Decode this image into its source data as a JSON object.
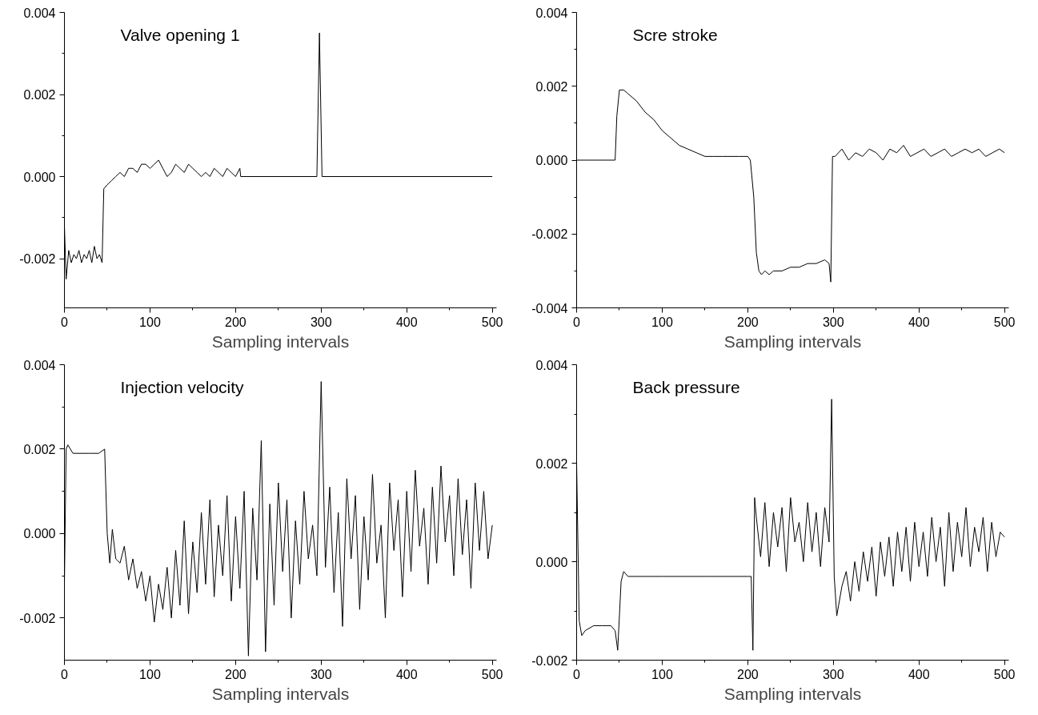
{
  "chart_data": [
    {
      "type": "line",
      "annotations": [
        "Valve opening 1"
      ],
      "xlabel": "Sampling intervals",
      "xlim": [
        0,
        505
      ],
      "ylim": [
        -0.0032,
        0.004
      ],
      "xticks": [
        0,
        100,
        200,
        300,
        400,
        500
      ],
      "yticks": [
        {
          "value": -0.002,
          "label": "-0.002"
        },
        {
          "value": 0,
          "label": "0.000"
        },
        {
          "value": 0.002,
          "label": "0.002"
        },
        {
          "value": 0.004,
          "label": "0.004"
        }
      ],
      "grid": false,
      "series": [
        {
          "color": "#000000",
          "x": [
            0,
            2,
            5,
            8,
            11,
            14,
            17,
            20,
            23,
            26,
            29,
            32,
            35,
            38,
            41,
            44,
            46,
            50,
            55,
            60,
            65,
            70,
            75,
            80,
            85,
            90,
            95,
            100,
            105,
            110,
            115,
            120,
            125,
            130,
            135,
            140,
            145,
            150,
            155,
            160,
            165,
            170,
            175,
            180,
            185,
            190,
            195,
            200,
            205,
            206,
            295,
            298,
            301,
            500
          ],
          "values": [
            -0.0012,
            -0.0025,
            -0.0018,
            -0.0021,
            -0.0019,
            -0.002,
            -0.0018,
            -0.0021,
            -0.0019,
            -0.002,
            -0.0018,
            -0.0021,
            -0.0017,
            -0.002,
            -0.0019,
            -0.0021,
            -0.0003,
            -0.0002,
            -0.0001,
            0.0,
            0.0001,
            0.0,
            0.0002,
            0.0002,
            0.0001,
            0.0003,
            0.0003,
            0.0002,
            0.0003,
            0.0004,
            0.0002,
            0.0,
            0.0001,
            0.0003,
            0.0002,
            0.0001,
            0.0003,
            0.0002,
            0.0001,
            0.0,
            0.0001,
            0.0,
            0.0002,
            0.0001,
            0.0,
            0.0002,
            0.0001,
            0.0,
            0.0002,
            0.0,
            0.0,
            0.0035,
            0.0,
            0.0
          ]
        }
      ]
    },
    {
      "type": "line",
      "annotations": [
        "Scre stroke"
      ],
      "xlabel": "Sampling intervals",
      "xlim": [
        0,
        505
      ],
      "ylim": [
        -0.004,
        0.004
      ],
      "xticks": [
        0,
        100,
        200,
        300,
        400,
        500
      ],
      "yticks": [
        {
          "value": -0.004,
          "label": "-0.004"
        },
        {
          "value": -0.002,
          "label": "-0.002"
        },
        {
          "value": 0,
          "label": "0.000"
        },
        {
          "value": 0.002,
          "label": "0.002"
        },
        {
          "value": 0.004,
          "label": "0.004"
        }
      ],
      "grid": false,
      "series": [
        {
          "color": "#000000",
          "x": [
            0,
            45,
            47,
            50,
            55,
            60,
            70,
            80,
            90,
            100,
            110,
            120,
            130,
            140,
            150,
            160,
            170,
            180,
            190,
            200,
            203,
            207,
            210,
            213,
            216,
            220,
            225,
            230,
            240,
            250,
            260,
            270,
            280,
            290,
            295,
            297,
            299,
            302,
            310,
            318,
            326,
            334,
            342,
            350,
            358,
            366,
            374,
            382,
            390,
            398,
            406,
            414,
            422,
            430,
            438,
            446,
            454,
            462,
            470,
            478,
            486,
            494,
            500
          ],
          "values": [
            0,
            0,
            0.0012,
            0.0019,
            0.0019,
            0.0018,
            0.0016,
            0.0013,
            0.0011,
            0.0008,
            0.0006,
            0.0004,
            0.0003,
            0.0002,
            0.0001,
            0.0001,
            0.0001,
            0.0001,
            0.0001,
            0.0001,
            0.0,
            -0.001,
            -0.0025,
            -0.003,
            -0.0031,
            -0.003,
            -0.0031,
            -0.003,
            -0.003,
            -0.0029,
            -0.0029,
            -0.0028,
            -0.0028,
            -0.0027,
            -0.0028,
            -0.0033,
            0.0001,
            0.0001,
            0.0003,
            0.0,
            0.0002,
            0.0001,
            0.0003,
            0.0002,
            0.0,
            0.0003,
            0.0002,
            0.0004,
            0.0001,
            0.0002,
            0.0003,
            0.0001,
            0.0002,
            0.0003,
            0.0001,
            0.0002,
            0.0003,
            0.0002,
            0.0003,
            0.0001,
            0.0002,
            0.0003,
            0.0002
          ]
        }
      ]
    },
    {
      "type": "line",
      "annotations": [
        "Injection velocity"
      ],
      "xlabel": "Sampling intervals",
      "xlim": [
        0,
        505
      ],
      "ylim": [
        -0.003,
        0.004
      ],
      "xticks": [
        0,
        100,
        200,
        300,
        400,
        500
      ],
      "yticks": [
        {
          "value": -0.002,
          "label": "-0.002"
        },
        {
          "value": 0,
          "label": "0.000"
        },
        {
          "value": 0.002,
          "label": "0.002"
        },
        {
          "value": 0.004,
          "label": "0.004"
        }
      ],
      "grid": false,
      "series": [
        {
          "color": "#000000",
          "x": [
            0,
            2,
            4,
            10,
            20,
            30,
            40,
            47,
            50,
            53,
            56,
            60,
            65,
            70,
            75,
            80,
            85,
            90,
            95,
            100,
            105,
            110,
            115,
            120,
            125,
            130,
            135,
            140,
            145,
            150,
            155,
            160,
            165,
            170,
            175,
            180,
            185,
            190,
            195,
            200,
            205,
            210,
            215,
            220,
            225,
            230,
            235,
            240,
            245,
            250,
            255,
            260,
            265,
            270,
            275,
            280,
            285,
            290,
            295,
            300,
            305,
            310,
            315,
            320,
            325,
            330,
            335,
            340,
            345,
            350,
            355,
            360,
            365,
            370,
            375,
            380,
            385,
            390,
            395,
            400,
            405,
            410,
            415,
            420,
            425,
            430,
            435,
            440,
            445,
            450,
            455,
            460,
            465,
            470,
            475,
            480,
            485,
            490,
            495,
            500
          ],
          "values": [
            -0.0012,
            0.002,
            0.0021,
            0.0019,
            0.0019,
            0.0019,
            0.0019,
            0.002,
            0.0,
            -0.0007,
            0.0001,
            -0.0006,
            -0.0007,
            -0.0003,
            -0.0011,
            -0.0006,
            -0.0013,
            -0.0009,
            -0.0016,
            -0.001,
            -0.0021,
            -0.0012,
            -0.0018,
            -0.0008,
            -0.002,
            -0.0004,
            -0.0017,
            0.0003,
            -0.0019,
            -0.0002,
            -0.0014,
            0.0005,
            -0.0012,
            0.0008,
            -0.0015,
            0.0002,
            -0.001,
            0.0009,
            -0.0016,
            0.0004,
            -0.0013,
            0.001,
            -0.0029,
            0.0006,
            -0.0011,
            0.0022,
            -0.0028,
            0.0007,
            -0.0017,
            0.0012,
            -0.0009,
            0.0008,
            -0.002,
            0.0003,
            -0.0012,
            0.001,
            -0.0006,
            0.0002,
            -0.001,
            0.0036,
            -0.0008,
            0.0011,
            -0.0014,
            0.0005,
            -0.0022,
            0.0013,
            -0.0006,
            0.0009,
            -0.0018,
            0.0004,
            -0.0011,
            0.0014,
            -0.0007,
            0.0002,
            -0.002,
            0.0012,
            -0.0004,
            0.0008,
            -0.0015,
            0.001,
            -0.0009,
            0.0015,
            -0.0003,
            0.0006,
            -0.0012,
            0.0011,
            -0.0007,
            0.0016,
            -0.0002,
            0.0009,
            -0.001,
            0.0013,
            -0.0005,
            0.0008,
            -0.0013,
            0.0012,
            -0.0004,
            0.001,
            -0.0006,
            0.0002
          ]
        }
      ]
    },
    {
      "type": "line",
      "annotations": [
        "Back pressure"
      ],
      "xlabel": "Sampling intervals",
      "xlim": [
        0,
        505
      ],
      "ylim": [
        -0.002,
        0.004
      ],
      "xticks": [
        0,
        100,
        200,
        300,
        400,
        500
      ],
      "yticks": [
        {
          "value": -0.002,
          "label": "-0.002"
        },
        {
          "value": 0,
          "label": "0.000"
        },
        {
          "value": 0.002,
          "label": "0.002"
        },
        {
          "value": 0.004,
          "label": "0.004"
        }
      ],
      "grid": false,
      "series": [
        {
          "color": "#000000",
          "x": [
            0,
            3,
            6,
            10,
            20,
            30,
            40,
            45,
            48,
            52,
            55,
            60,
            100,
            150,
            200,
            204,
            206,
            208,
            210,
            215,
            220,
            225,
            230,
            235,
            240,
            245,
            250,
            255,
            260,
            265,
            270,
            275,
            280,
            285,
            290,
            295,
            298,
            301,
            304,
            310,
            315,
            320,
            325,
            330,
            335,
            340,
            345,
            350,
            355,
            360,
            365,
            370,
            375,
            380,
            385,
            390,
            395,
            400,
            405,
            410,
            415,
            420,
            425,
            430,
            435,
            440,
            445,
            450,
            455,
            460,
            465,
            470,
            475,
            480,
            485,
            490,
            495,
            500
          ],
          "values": [
            0.002,
            -0.0012,
            -0.0015,
            -0.0014,
            -0.0013,
            -0.0013,
            -0.0013,
            -0.0014,
            -0.0018,
            -0.0004,
            -0.0002,
            -0.0003,
            -0.0003,
            -0.0003,
            -0.0003,
            -0.0003,
            -0.0018,
            0.0013,
            0.0009,
            0.0001,
            0.0012,
            -0.0001,
            0.001,
            0.0003,
            0.0011,
            -0.0002,
            0.0013,
            0.0004,
            0.0008,
            0.0,
            0.0012,
            0.0002,
            0.001,
            -0.0001,
            0.0011,
            0.0004,
            0.0033,
            -0.0003,
            -0.0011,
            -0.0005,
            -0.0002,
            -0.0008,
            0.0,
            -0.0006,
            0.0002,
            -0.0004,
            0.0003,
            -0.0007,
            0.0004,
            -0.0003,
            0.0005,
            -0.0005,
            0.0006,
            -0.0002,
            0.0007,
            -0.0004,
            0.0008,
            -0.0001,
            0.0006,
            -0.0003,
            0.0009,
            0.0,
            0.0007,
            -0.0005,
            0.001,
            -0.0002,
            0.0008,
            0.0001,
            0.0011,
            -0.0001,
            0.0007,
            0.0002,
            0.0009,
            -0.0002,
            0.0008,
            0.0001,
            0.0006,
            0.0005
          ]
        }
      ]
    }
  ]
}
